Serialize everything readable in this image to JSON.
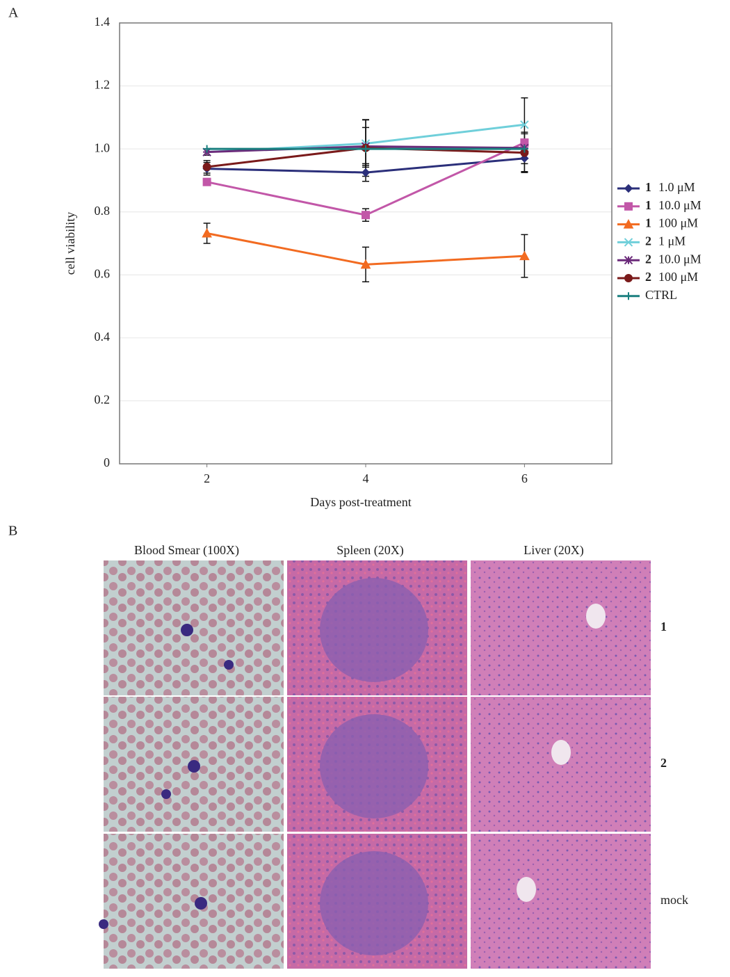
{
  "panel_a": {
    "label": "A"
  },
  "chart_data": {
    "type": "line",
    "x_label": "Days post-treatment",
    "y_label": "cell viability",
    "x": [
      2,
      4,
      6
    ],
    "xlim": [
      0.9,
      7.1
    ],
    "xticks": [
      2,
      4,
      6
    ],
    "ylim": [
      0,
      1.4
    ],
    "yticks": [
      0,
      0.2,
      0.4,
      0.6,
      0.8,
      {
        "value": 1,
        "label": "1.0"
      },
      1.2,
      1.4
    ],
    "grid": true,
    "legend": "right",
    "series": [
      {
        "compound": "1",
        "name": "1.0 μM",
        "color": "#2b2f7a",
        "marker": "diamond",
        "values": [
          0.937,
          0.925,
          0.97
        ],
        "errors": [
          0.02,
          0.028,
          0.045
        ]
      },
      {
        "compound": "1",
        "name": "10.0 μM",
        "color": "#c257a8",
        "marker": "square",
        "values": [
          0.895,
          0.79,
          1.02
        ],
        "errors": [
          0.01,
          0.02,
          0.0
        ]
      },
      {
        "compound": "1",
        "name": "100 μM",
        "color": "#f26b21",
        "marker": "triangle",
        "values": [
          0.732,
          0.633,
          0.66
        ],
        "errors": [
          0.032,
          0.055,
          0.068
        ]
      },
      {
        "compound": "2",
        "name": "1 μM",
        "color": "#6fcfda",
        "marker": "x",
        "values": [
          0.99,
          1.017,
          1.077
        ],
        "errors": [
          0.01,
          0.075,
          0.085
        ]
      },
      {
        "compound": "2",
        "name": "10.0 μM",
        "color": "#6b2a7a",
        "marker": "star",
        "values": [
          0.99,
          1.008,
          1.003
        ],
        "errors": [
          0.01,
          0.06,
          0.05
        ]
      },
      {
        "compound": "2",
        "name": "100 μM",
        "color": "#7a1a1a",
        "marker": "circle",
        "values": [
          0.943,
          1.003,
          0.988
        ],
        "errors": [
          0.02,
          0.09,
          0.06
        ]
      },
      {
        "name": "CTRL",
        "color": "#1a7f7f",
        "marker": "plus",
        "values": [
          1.0,
          1.0,
          1.0
        ],
        "errors": [
          0.0,
          0.0,
          0.0
        ]
      }
    ]
  },
  "panel_b": {
    "label": "B",
    "columns": [
      "Blood Smear (100X)",
      "Spleen (20X)",
      "Liver (20X)"
    ],
    "rows": [
      "1",
      "2",
      "mock"
    ]
  }
}
